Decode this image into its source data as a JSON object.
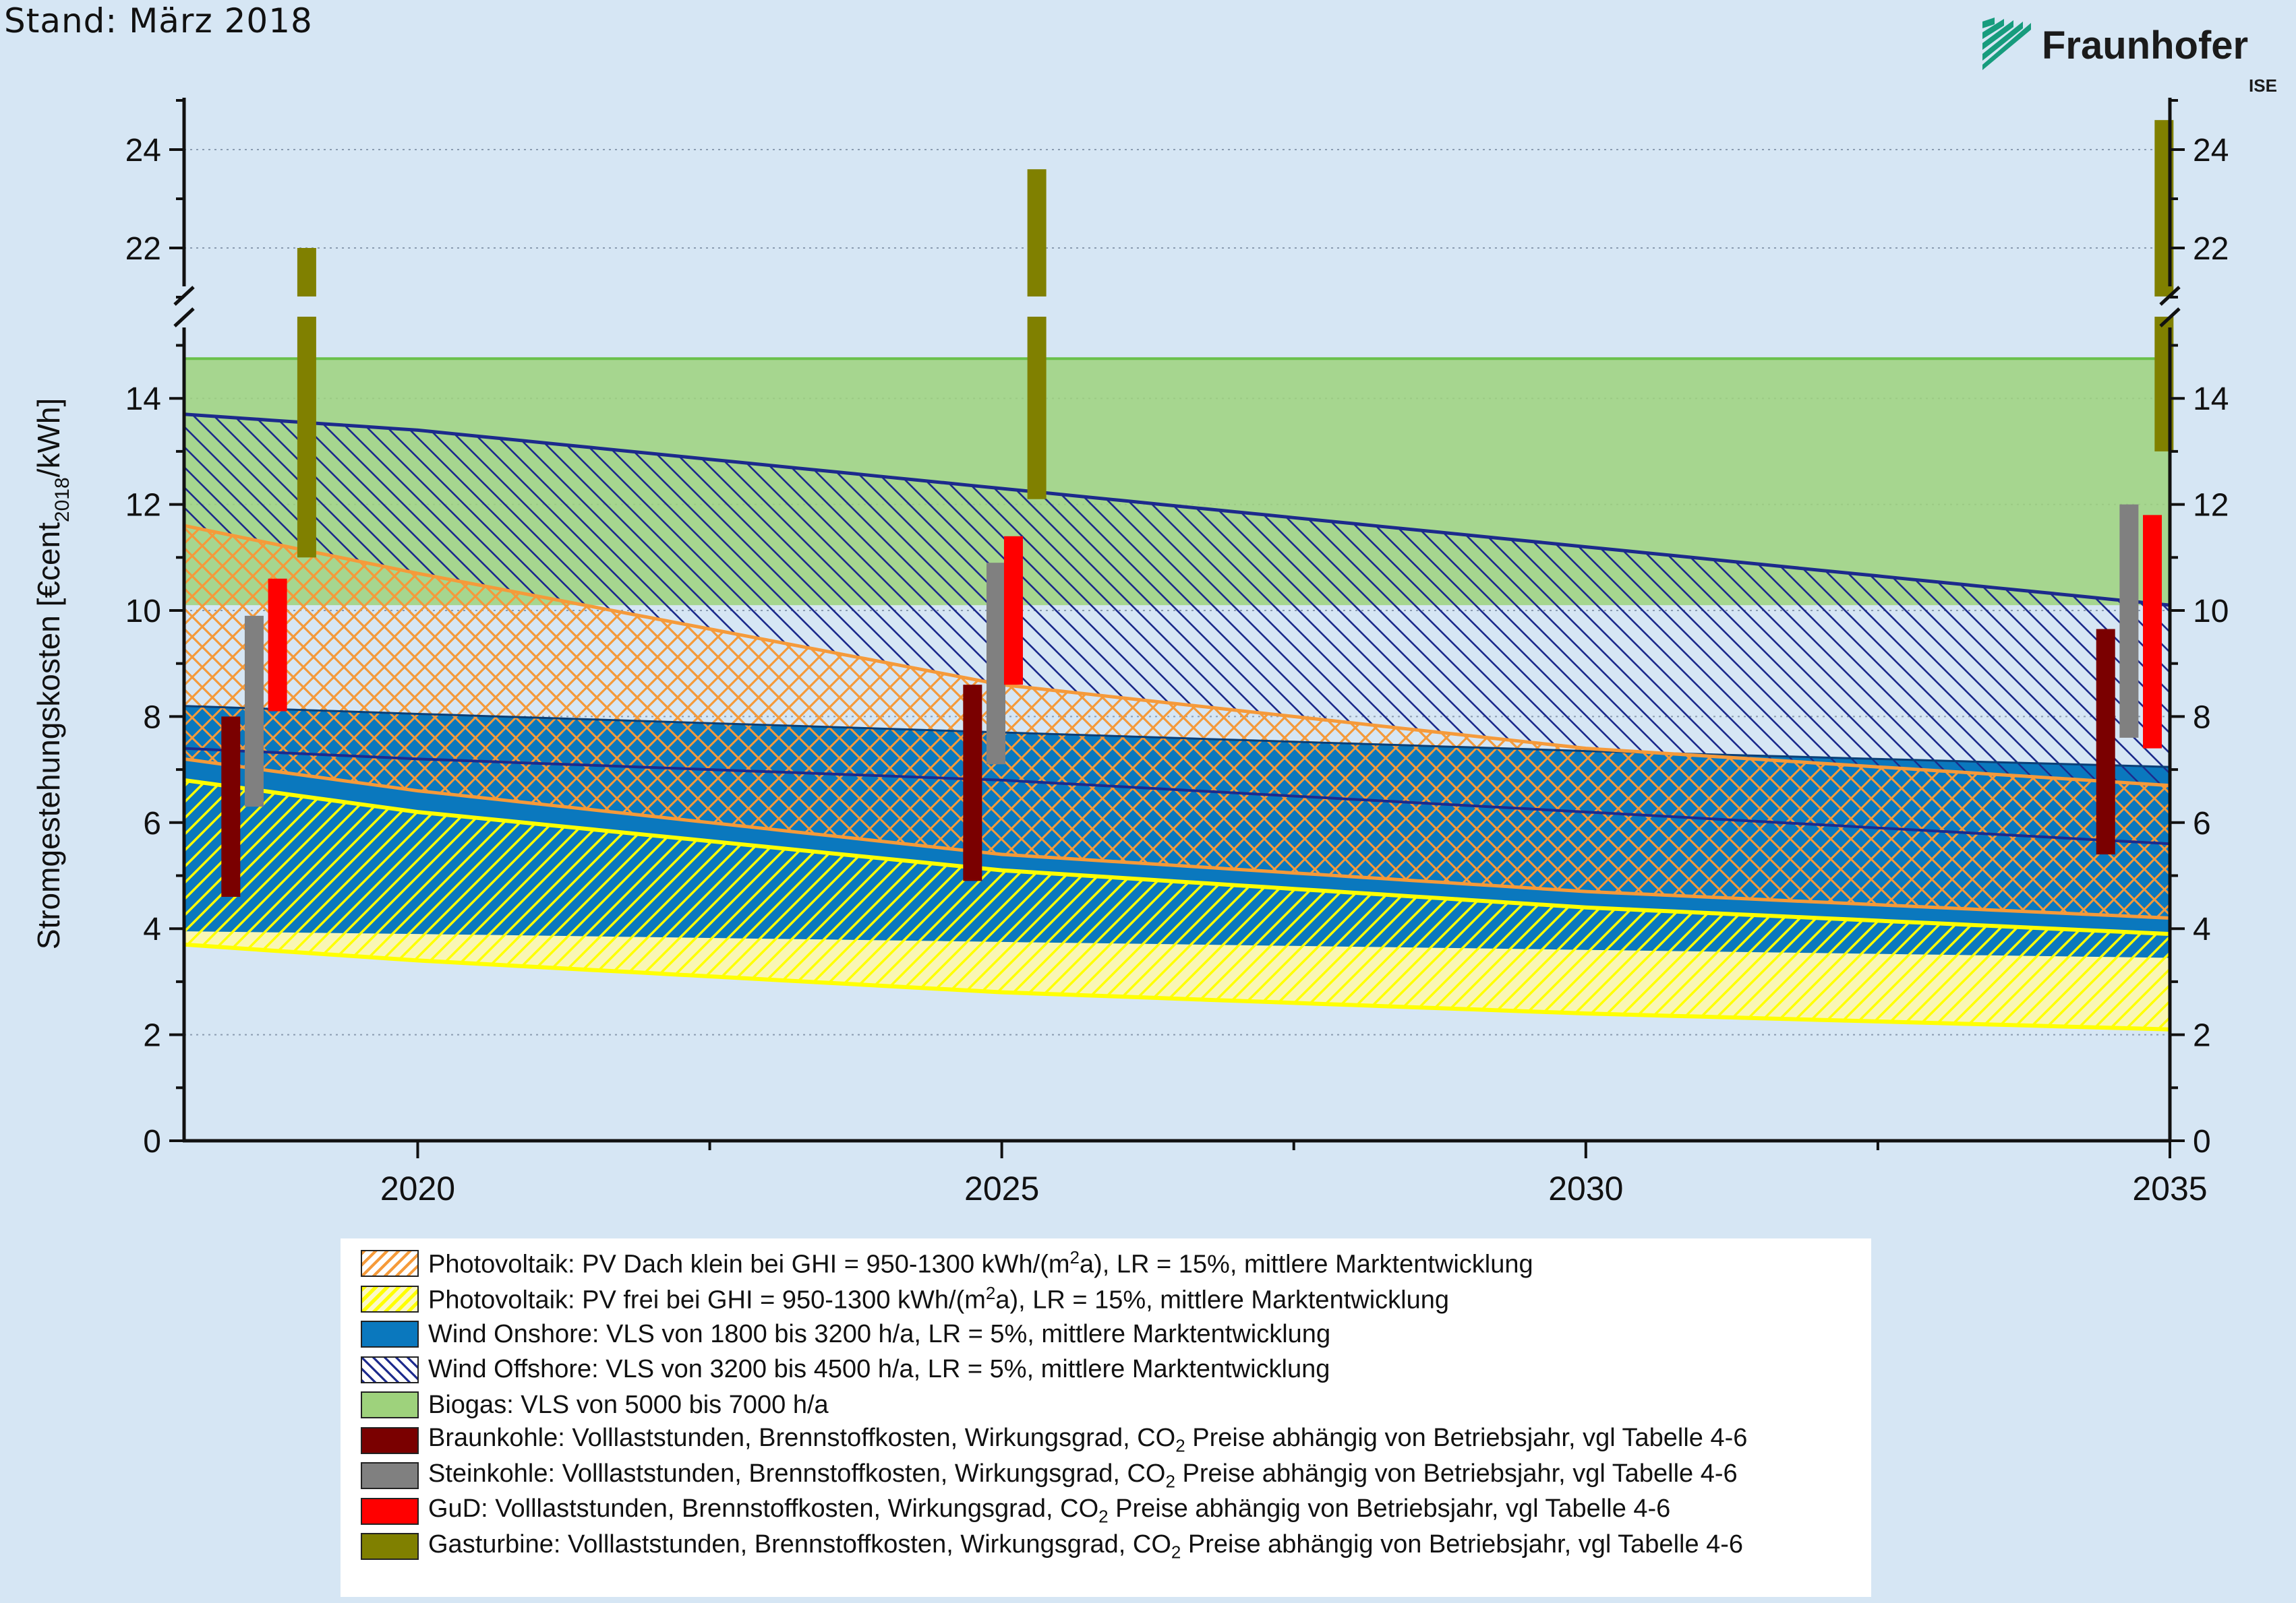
{
  "header": {
    "stand_label": "Stand: März 2018",
    "logo_name": "Fraunhofer",
    "logo_suffix": "ISE",
    "logo_color": "#179c7d"
  },
  "chart_data": {
    "type": "area",
    "ylabel": "Stromgestehungskosten [€cent2018/kWh]",
    "ylabel_parts": {
      "before": "Stromgestehungskosten [€cent",
      "sub": "2018",
      "after": "/kWh]"
    },
    "xlim": [
      2018,
      2035
    ],
    "ylim_lower": [
      0,
      15.5
    ],
    "ylim_upper": [
      21,
      25
    ],
    "axis_break": "between 15.5 and 21",
    "grid": "dotted horizontal",
    "x_ticks": [
      2020,
      2025,
      2030,
      2035
    ],
    "x_ticklabels": [
      "2020",
      "2025",
      "2030",
      "2035"
    ],
    "y_ticks": [
      0,
      2,
      4,
      6,
      8,
      10,
      12,
      14,
      22,
      24
    ],
    "y_ticklabels": [
      "0",
      "2",
      "4",
      "6",
      "8",
      "10",
      "12",
      "14",
      "22",
      "24"
    ],
    "bands": [
      {
        "name": "Photovoltaik PV Dach klein",
        "legend": {
          "before": "Photovoltaik: PV Dach klein bei GHI = 950-1300 kWh/(m",
          "sup": "2",
          "after": "a), LR = 15%, mittlere Marktentwicklung"
        },
        "color": "#f59a3a",
        "x": [
          2018,
          2020,
          2025,
          2030,
          2035
        ],
        "lower": [
          7.2,
          6.6,
          5.4,
          4.7,
          4.2
        ],
        "upper": [
          11.6,
          10.7,
          8.6,
          7.4,
          6.7
        ]
      },
      {
        "name": "Photovoltaik PV frei",
        "legend": {
          "before": "Photovoltaik: PV frei bei GHI = 950-1300 kWh/(m",
          "sup": "2",
          "after": "a), LR = 15%, mittlere Marktentwicklung"
        },
        "color": "#ffff00",
        "x": [
          2018,
          2020,
          2025,
          2030,
          2035
        ],
        "lower": [
          3.7,
          3.4,
          2.8,
          2.4,
          2.1
        ],
        "upper": [
          6.8,
          6.2,
          5.1,
          4.4,
          3.9
        ]
      },
      {
        "name": "Wind Onshore",
        "legend": {
          "before": "Wind Onshore: VLS von 1800 bis 3200 h/a, LR = 5%, mittlere Marktentwicklung",
          "sup": "",
          "after": ""
        },
        "color": "#0a78be",
        "x": [
          2018,
          2020,
          2025,
          2030,
          2035
        ],
        "lower": [
          3.95,
          3.9,
          3.75,
          3.6,
          3.45
        ],
        "upper": [
          8.2,
          8.05,
          7.7,
          7.35,
          7.05
        ]
      },
      {
        "name": "Wind Offshore",
        "legend": {
          "before": "Wind Offshore: VLS von 3200 bis 4500 h/a, LR = 5%, mittlere Marktentwicklung",
          "sup": "",
          "after": ""
        },
        "color": "#1c2a8c",
        "x": [
          2018,
          2020,
          2025,
          2030,
          2035
        ],
        "lower": [
          7.4,
          7.2,
          6.8,
          6.2,
          5.6
        ],
        "upper": [
          13.7,
          13.4,
          12.3,
          11.2,
          10.1
        ]
      },
      {
        "name": "Biogas",
        "legend": {
          "before": "Biogas: VLS von 5000 bis 7000 h/a",
          "sup": "",
          "after": ""
        },
        "color": "#9ed27c",
        "x": [
          2018,
          2035
        ],
        "lower": [
          10.1,
          10.1
        ],
        "upper": [
          14.75,
          14.75
        ]
      }
    ],
    "bars": [
      {
        "name": "Braunkohle",
        "color": "#7a0000",
        "legend": {
          "before": "Braunkohle: Volllaststunden, Brennstoffkosten, Wirkungsgrad, CO",
          "sub": "2",
          "after": " Preise abhängig von Betriebsjahr, vgl Tabelle 4-6"
        },
        "ranges": [
          {
            "x": 2018.4,
            "low": 4.6,
            "high": 8.0
          },
          {
            "x": 2024.75,
            "low": 4.9,
            "high": 8.6
          },
          {
            "x": 2034.45,
            "low": 5.4,
            "high": 9.65
          }
        ]
      },
      {
        "name": "Steinkohle",
        "color": "#808080",
        "legend": {
          "before": "Steinkohle: Volllaststunden, Brennstoffkosten, Wirkungsgrad, CO",
          "sub": "2",
          "after": " Preise abhängig von Betriebsjahr, vgl Tabelle 4-6"
        },
        "ranges": [
          {
            "x": 2018.6,
            "low": 6.3,
            "high": 9.9
          },
          {
            "x": 2024.95,
            "low": 7.1,
            "high": 10.9
          },
          {
            "x": 2034.65,
            "low": 7.6,
            "high": 12.0
          }
        ]
      },
      {
        "name": "GuD",
        "color": "#ff0000",
        "legend": {
          "before": "GuD: Volllaststunden, Brennstoffkosten, Wirkungsgrad, CO",
          "sub": "2",
          "after": " Preise abhängig von Betriebsjahr, vgl Tabelle 4-6"
        },
        "ranges": [
          {
            "x": 2018.8,
            "low": 8.1,
            "high": 10.6
          },
          {
            "x": 2025.1,
            "low": 8.6,
            "high": 11.4
          },
          {
            "x": 2034.85,
            "low": 7.4,
            "high": 11.8
          }
        ]
      },
      {
        "name": "Gasturbine",
        "color": "#808000",
        "legend": {
          "before": "Gasturbine: Volllaststunden, Brennstoffkosten, Wirkungsgrad, CO",
          "sub": "2",
          "after": " Preise abhängig von Betriebsjahr, vgl Tabelle 4-6"
        },
        "ranges": [
          {
            "x": 2019.05,
            "low": 11.0,
            "high": 22.0
          },
          {
            "x": 2025.3,
            "low": 12.1,
            "high": 23.6
          },
          {
            "x": 2034.95,
            "low": 13.0,
            "high": 24.6
          }
        ]
      }
    ]
  }
}
